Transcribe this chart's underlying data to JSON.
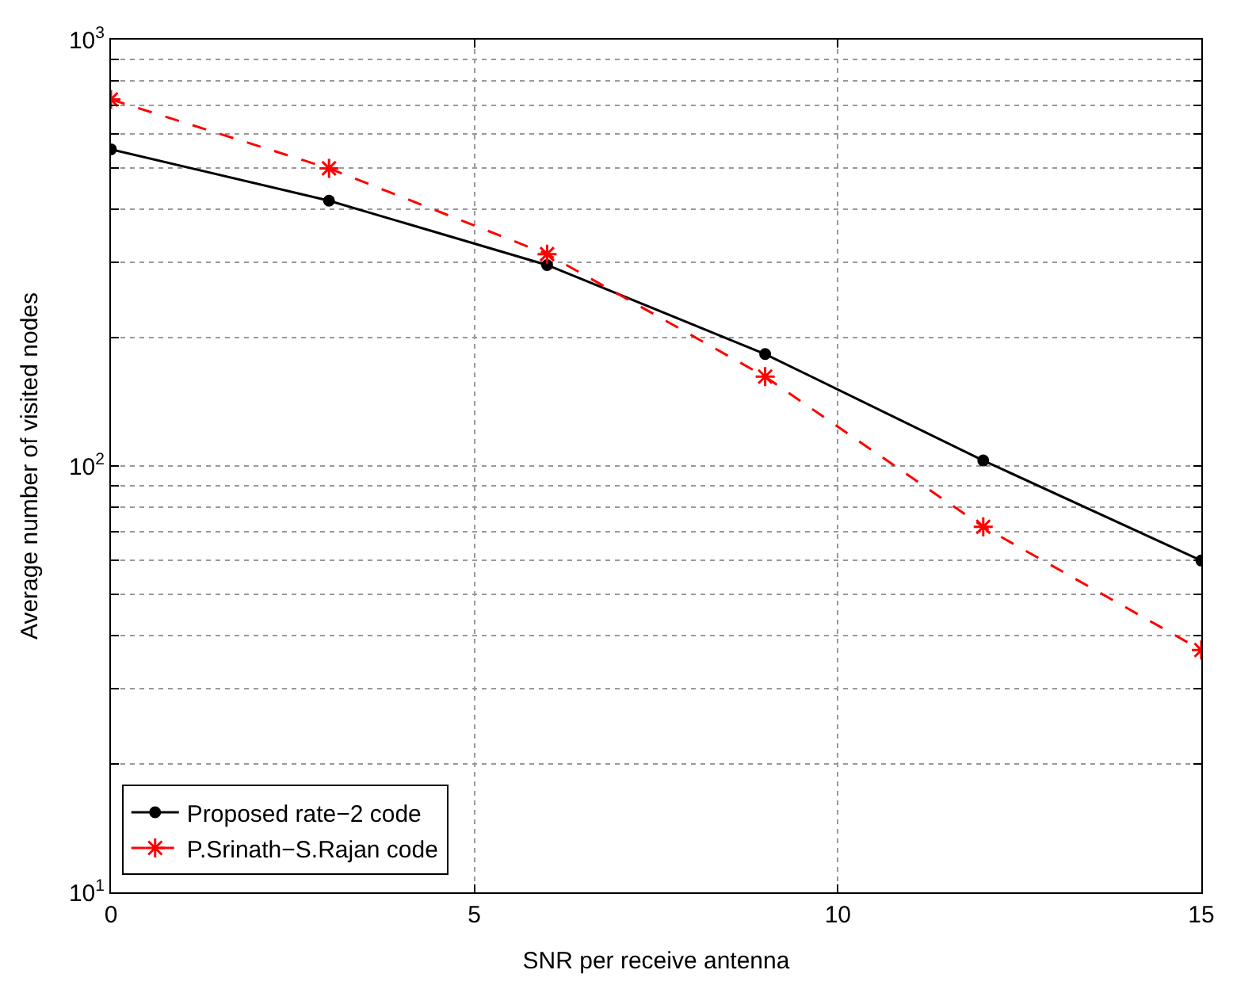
{
  "chart_data": {
    "type": "line",
    "xlabel": "SNR per receive antenna",
    "ylabel": "Average number of visited nodes",
    "x": [
      0,
      3,
      6,
      9,
      12,
      15
    ],
    "series": [
      {
        "name": "Proposed rate−2 code",
        "color": "#000000",
        "marker": "circle",
        "line_style": "solid",
        "values": [
          553,
          419,
          296,
          183,
          103,
          60
        ]
      },
      {
        "name": "P.Srinath−S.Rajan code",
        "color": "#ff0000",
        "marker": "cross",
        "line_style": "dashed",
        "values": [
          724,
          499,
          314,
          162,
          72,
          37
        ]
      }
    ],
    "log": "y",
    "xlim": [
      0,
      15
    ],
    "xticks": [
      0,
      5,
      10,
      15
    ],
    "ylim": [
      10,
      1000
    ],
    "yticks": [
      {
        "value": 10,
        "label": "10$^{1}$"
      },
      {
        "value": 20,
        "label": null
      },
      {
        "value": 30,
        "label": null
      },
      {
        "value": 40,
        "label": null
      },
      {
        "value": 50,
        "label": null
      },
      {
        "value": 60,
        "label": null
      },
      {
        "value": 70,
        "label": null
      },
      {
        "value": 80,
        "label": null
      },
      {
        "value": 90,
        "label": null
      },
      {
        "value": 100,
        "label": "10$^{2}$"
      },
      {
        "value": 200,
        "label": null
      },
      {
        "value": 300,
        "label": null
      },
      {
        "value": 400,
        "label": null
      },
      {
        "value": 500,
        "label": null
      },
      {
        "value": 600,
        "label": null
      },
      {
        "value": 700,
        "label": null
      },
      {
        "value": 800,
        "label": null
      },
      {
        "value": 900,
        "label": null
      },
      {
        "value": 1000,
        "label": "10$^{3}$"
      }
    ],
    "grid": true,
    "legend": "bottom left"
  }
}
